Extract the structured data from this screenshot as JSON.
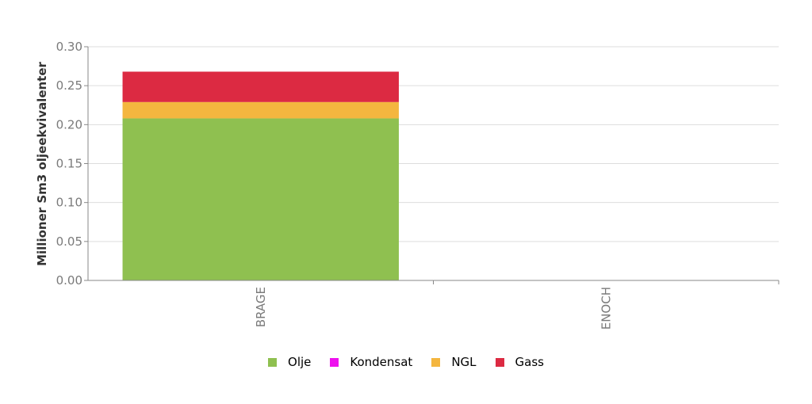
{
  "chart_data": {
    "type": "bar",
    "stacked": true,
    "categories": [
      "BRAGE",
      "ENOCH"
    ],
    "series": [
      {
        "name": "Olje",
        "color": "#8fc050",
        "values": [
          0.208,
          0.0
        ]
      },
      {
        "name": "Kondensat",
        "color": "#ee10ee",
        "values": [
          0.0,
          0.0
        ]
      },
      {
        "name": "NGL",
        "color": "#f4b63f",
        "values": [
          0.021,
          0.0
        ]
      },
      {
        "name": "Gass",
        "color": "#dc2a42",
        "values": [
          0.039,
          0.0
        ]
      }
    ],
    "title": "",
    "xlabel": "",
    "ylabel": "Millioner Sm3 oljeekvivalenter",
    "ylim": [
      0,
      0.3
    ],
    "yticks": [
      "0.00",
      "0.05",
      "0.10",
      "0.15",
      "0.20",
      "0.25",
      "0.30"
    ],
    "grid": true,
    "legend_position": "bottom"
  }
}
